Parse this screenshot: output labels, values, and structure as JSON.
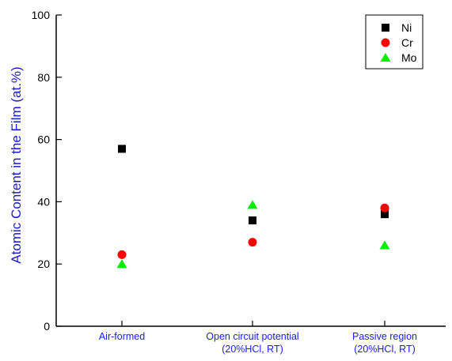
{
  "chart_data": {
    "type": "scatter",
    "title": "",
    "xlabel": "",
    "ylabel": "Atomic Content in the Film (at.%)",
    "ylim": [
      0,
      100
    ],
    "yticks": [
      0,
      20,
      40,
      60,
      80,
      100
    ],
    "grid": false,
    "legend_position": "top-right",
    "categories": [
      [
        "Air-formed"
      ],
      [
        "Open circuit potential",
        "(20%HCl, RT)"
      ],
      [
        "Passive region",
        "(20%HCl, RT)"
      ]
    ],
    "series": [
      {
        "name": "Ni",
        "marker": "square",
        "color": "#000000",
        "values": [
          57,
          34,
          36
        ]
      },
      {
        "name": "Cr",
        "marker": "circle",
        "color": "#ff0000",
        "values": [
          23,
          27,
          38
        ]
      },
      {
        "name": "Mo",
        "marker": "triangle",
        "color": "#00ee00",
        "values": [
          20,
          39,
          26
        ]
      }
    ],
    "colors": {
      "axis": "#000000",
      "ylabel": "#1a1acd",
      "category_labels": "#1a1aff"
    }
  }
}
